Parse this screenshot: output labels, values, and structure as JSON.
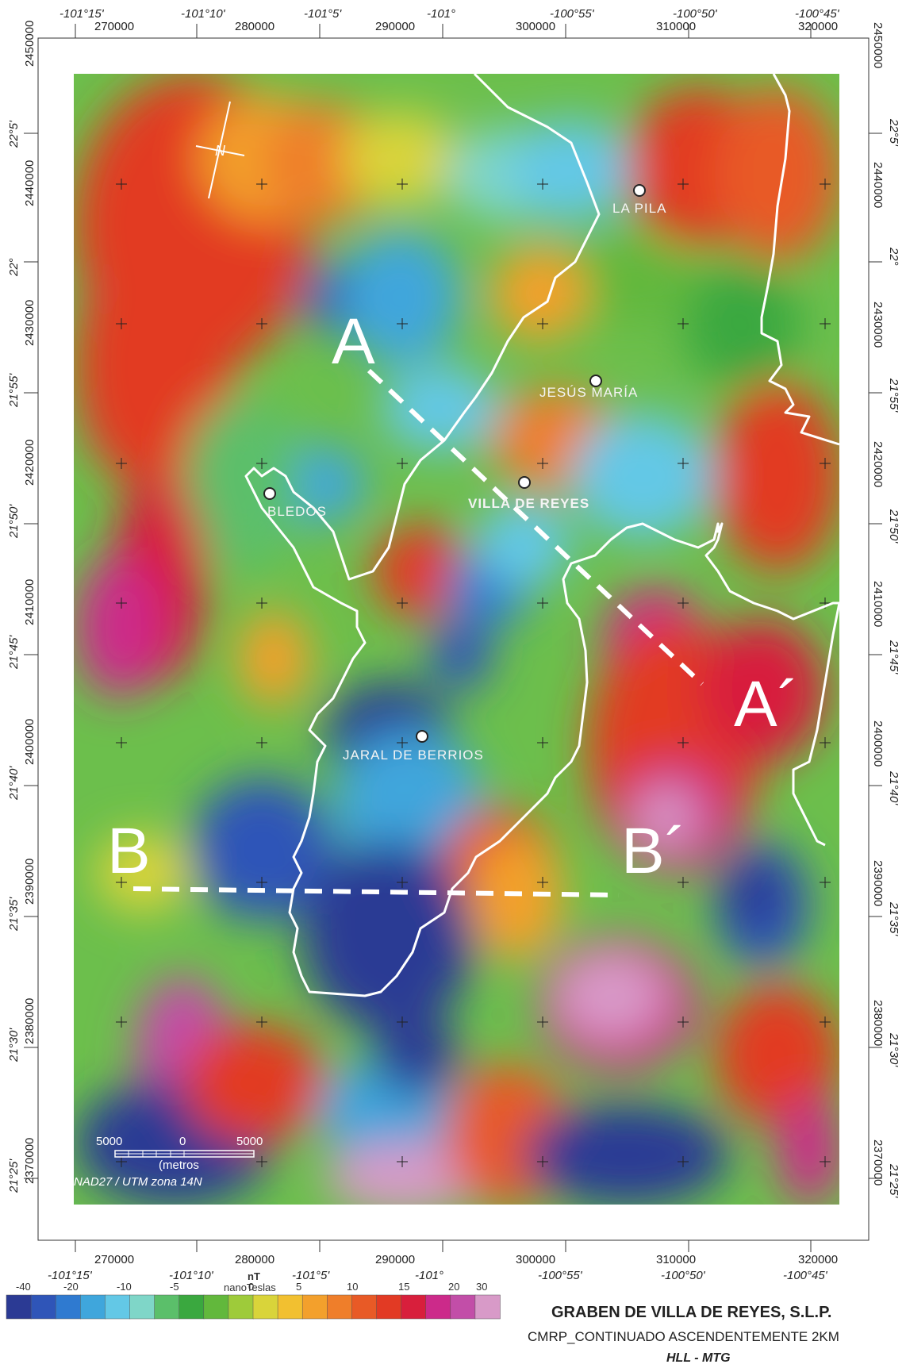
{
  "map": {
    "title": "GRABEN DE VILLA DE REYES, S.L.P.",
    "subtitle": "CMRP_CONTINUADO ASCENDENTEMENTE 2KM",
    "authors": "HLL - MTG",
    "datum": "NAD27 / UTM zona 14N",
    "scale": {
      "labels": [
        "5000",
        "0",
        "5000"
      ],
      "unit": "(metros"
    },
    "north_arrow_label": "N"
  },
  "towns": [
    {
      "name": "LA PILA"
    },
    {
      "name": "JESÚS MARÍA"
    },
    {
      "name": "BLEDOS"
    },
    {
      "name": "VILLA DE REYES"
    },
    {
      "name": "JARAL DE BERRIOS"
    }
  ],
  "profiles": [
    {
      "start": "A",
      "end": "A´"
    },
    {
      "start": "B",
      "end": "B´"
    }
  ],
  "axes": {
    "utm_easting": [
      "270000",
      "280000",
      "290000",
      "300000",
      "310000",
      "320000"
    ],
    "utm_northing": [
      "2450000",
      "2440000",
      "2430000",
      "2420000",
      "2410000",
      "2400000",
      "2390000",
      "2380000",
      "2370000"
    ],
    "longitude": [
      "-101°15'",
      "-101°10'",
      "-101°5'",
      "-101°",
      "-100°55'",
      "-100°50'",
      "-100°45'"
    ],
    "latitude": [
      "22°5'",
      "22°",
      "21°55'",
      "21°50'",
      "21°45'",
      "21°40'",
      "21°35'",
      "21°30'",
      "21°25'"
    ]
  },
  "legend": {
    "unit": "nT",
    "unit_long": "nanoTeslas",
    "tick_labels": [
      "-40",
      "-20",
      "-10",
      "-5",
      "0",
      "5",
      "10",
      "15",
      "20",
      "30"
    ],
    "colors": [
      "#2b3a94",
      "#2f55b8",
      "#2f7ad0",
      "#3fa6dc",
      "#63c8e6",
      "#7fd6c8",
      "#5bbf6a",
      "#3aa83f",
      "#62b83c",
      "#9ecb3a",
      "#d9d43a",
      "#f2c030",
      "#f3a02c",
      "#ef7e2a",
      "#e85a26",
      "#e23a24",
      "#d81f3c",
      "#cc2a8a",
      "#c24ea8",
      "#d89ac8"
    ]
  }
}
